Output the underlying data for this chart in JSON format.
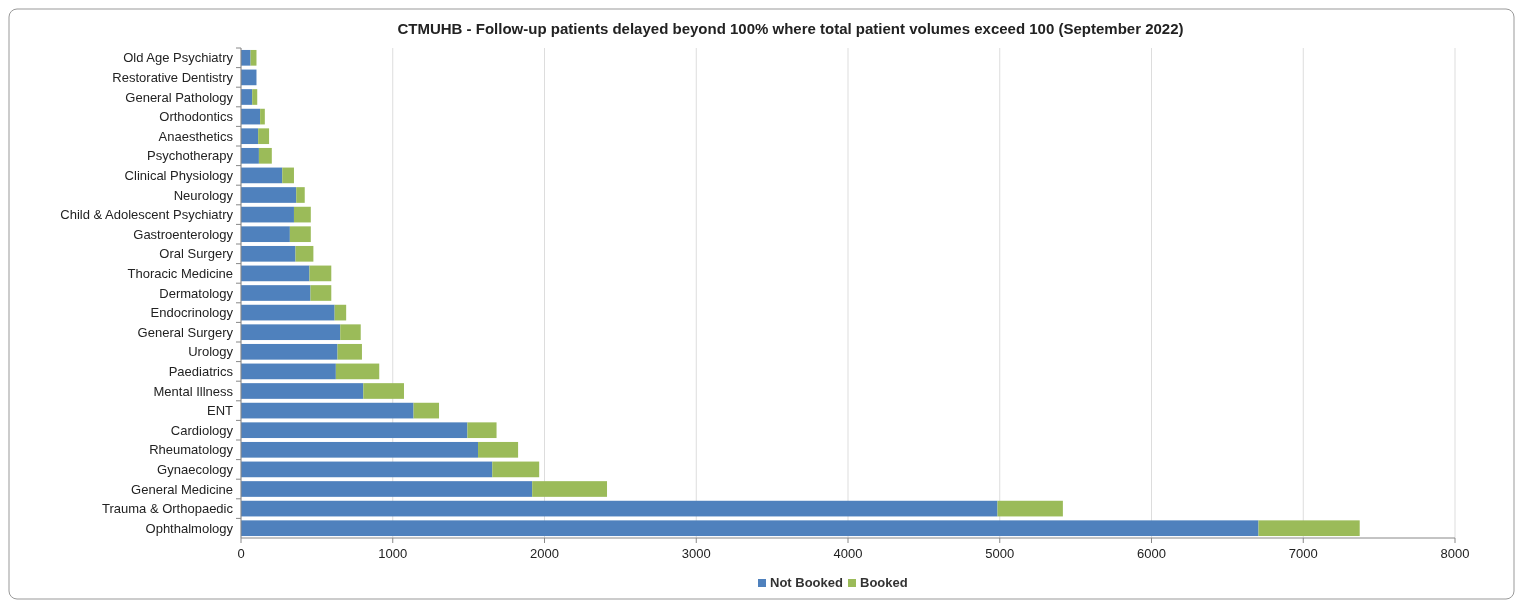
{
  "chart_data": {
    "type": "bar",
    "orientation": "horizontal",
    "stacked": true,
    "title": "CTMUHB - Follow-up patients delayed beyond 100% where total patient volumes exceed 100 (September 2022)",
    "categories": [
      "Old Age Psychiatry",
      "Restorative Dentistry",
      "General Pathology",
      "Orthodontics",
      "Anaesthetics",
      "Psychotherapy",
      "Clinical Physiology",
      "Neurology",
      "Child & Adolescent Psychiatry",
      "Gastroenterology",
      "Oral Surgery",
      "Thoracic Medicine",
      "Dermatology",
      "Endocrinology",
      "General Surgery",
      "Urology",
      "Paediatrics",
      "Mental Illness",
      "ENT",
      "Cardiology",
      "Rheumatology",
      "Gynaecology",
      "General Medicine",
      "Trauma & Orthopaedic",
      "Ophthalmology"
    ],
    "series": [
      {
        "name": "Not Booked",
        "color": "#4f81bd",
        "values": [
          63,
          102,
          74,
          126,
          113,
          118,
          272,
          364,
          349,
          322,
          359,
          451,
          458,
          617,
          654,
          636,
          625,
          806,
          1137,
          1492,
          1562,
          1656,
          1919,
          4985,
          6705
        ]
      },
      {
        "name": "Booked",
        "color": "#9bbb59",
        "values": [
          39,
          0,
          33,
          31,
          72,
          85,
          77,
          56,
          111,
          138,
          118,
          144,
          137,
          76,
          135,
          161,
          286,
          268,
          168,
          192,
          264,
          309,
          493,
          431,
          667
        ]
      }
    ],
    "xlim": [
      0,
      8000
    ],
    "xticks": [
      0,
      1000,
      2000,
      3000,
      4000,
      5000,
      6000,
      7000,
      8000
    ],
    "grid": "x",
    "legend": "bottom"
  }
}
